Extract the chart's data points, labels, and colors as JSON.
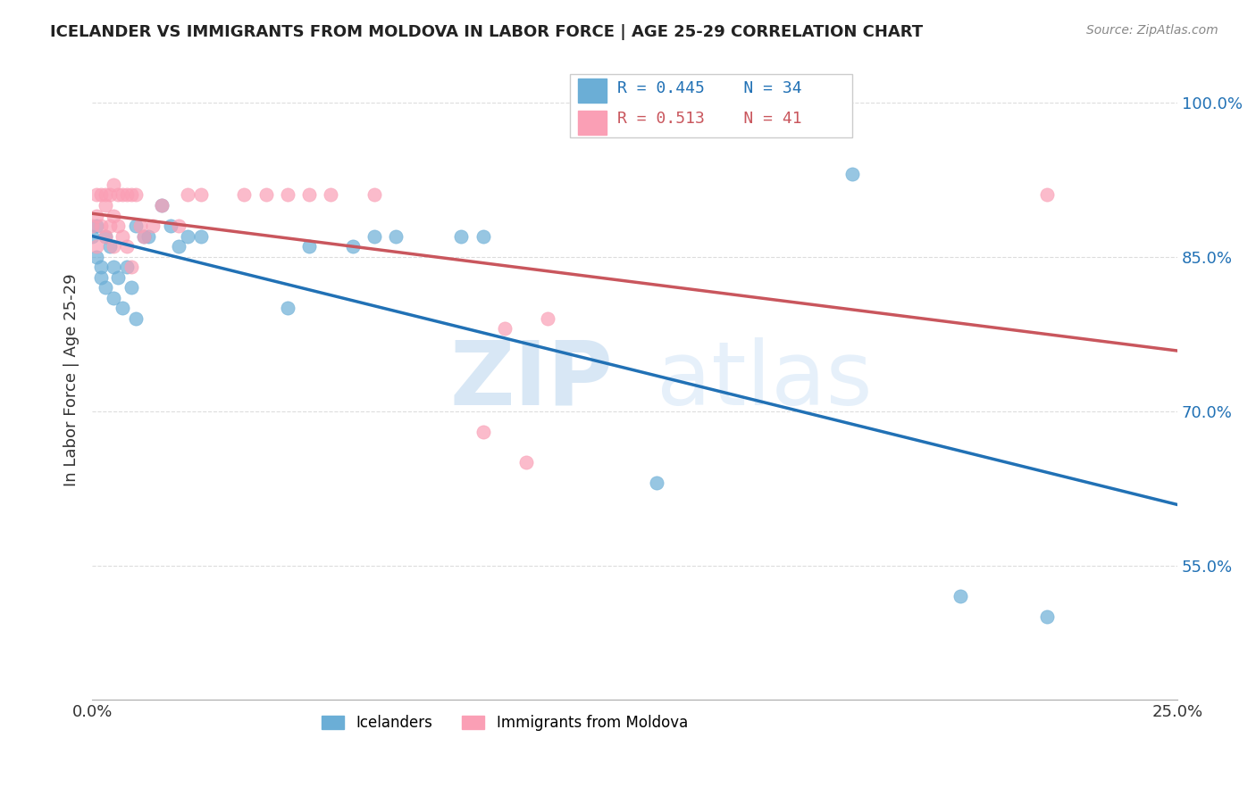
{
  "title": "ICELANDER VS IMMIGRANTS FROM MOLDOVA IN LABOR FORCE | AGE 25-29 CORRELATION CHART",
  "source": "Source: ZipAtlas.com",
  "ylabel": "In Labor Force | Age 25-29",
  "ytick_vals": [
    0.55,
    0.7,
    0.85,
    1.0
  ],
  "ytick_labels": [
    "55.0%",
    "70.0%",
    "85.0%",
    "100.0%"
  ],
  "xtick_vals": [
    0.0,
    0.05,
    0.1,
    0.15,
    0.2,
    0.25
  ],
  "xtick_labels": [
    "0.0%",
    "",
    "",
    "",
    "",
    "25.0%"
  ],
  "xlim": [
    0.0,
    0.25
  ],
  "ylim": [
    0.42,
    1.04
  ],
  "legend_blue_r": "R = 0.445",
  "legend_blue_n": "N = 34",
  "legend_pink_r": "R = 0.513",
  "legend_pink_n": "N = 41",
  "blue_color": "#6baed6",
  "pink_color": "#fa9fb5",
  "blue_line_color": "#2171b5",
  "pink_line_color": "#c9565d",
  "icel_x": [
    0.0,
    0.001,
    0.001,
    0.002,
    0.002,
    0.003,
    0.003,
    0.004,
    0.005,
    0.005,
    0.006,
    0.007,
    0.008,
    0.009,
    0.01,
    0.01,
    0.012,
    0.013,
    0.016,
    0.018,
    0.02,
    0.022,
    0.025,
    0.045,
    0.05,
    0.06,
    0.065,
    0.07,
    0.085,
    0.09,
    0.13,
    0.175,
    0.2,
    0.22
  ],
  "icel_y": [
    0.87,
    0.88,
    0.85,
    0.84,
    0.83,
    0.87,
    0.82,
    0.86,
    0.81,
    0.84,
    0.83,
    0.8,
    0.84,
    0.82,
    0.79,
    0.88,
    0.87,
    0.87,
    0.9,
    0.88,
    0.86,
    0.87,
    0.87,
    0.8,
    0.86,
    0.86,
    0.87,
    0.87,
    0.87,
    0.87,
    0.63,
    0.93,
    0.52,
    0.5
  ],
  "mold_x": [
    0.0,
    0.001,
    0.001,
    0.001,
    0.002,
    0.002,
    0.003,
    0.003,
    0.003,
    0.004,
    0.004,
    0.005,
    0.005,
    0.005,
    0.006,
    0.006,
    0.007,
    0.007,
    0.008,
    0.008,
    0.009,
    0.009,
    0.01,
    0.011,
    0.012,
    0.014,
    0.016,
    0.02,
    0.022,
    0.025,
    0.035,
    0.04,
    0.045,
    0.05,
    0.055,
    0.065,
    0.09,
    0.095,
    0.1,
    0.105,
    0.22
  ],
  "mold_y": [
    0.88,
    0.91,
    0.89,
    0.86,
    0.91,
    0.88,
    0.91,
    0.9,
    0.87,
    0.91,
    0.88,
    0.92,
    0.89,
    0.86,
    0.91,
    0.88,
    0.91,
    0.87,
    0.91,
    0.86,
    0.91,
    0.84,
    0.91,
    0.88,
    0.87,
    0.88,
    0.9,
    0.88,
    0.91,
    0.91,
    0.91,
    0.91,
    0.91,
    0.91,
    0.91,
    0.91,
    0.68,
    0.78,
    0.65,
    0.79,
    0.91
  ],
  "watermark_zip": "ZIP",
  "watermark_atlas": "atlas",
  "grid_color": "#dddddd",
  "background_color": "#ffffff"
}
